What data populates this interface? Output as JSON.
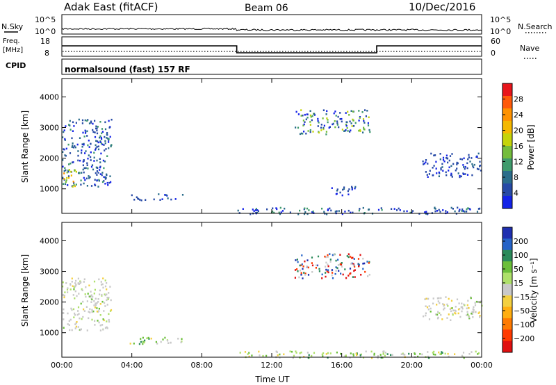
{
  "header": {
    "station": "Adak East (fitACF)",
    "beam": "Beam 06",
    "date": "10/Dec/2016"
  },
  "sky_panel": {
    "left_label": "N.Sky",
    "right_label": "N.Search",
    "left_ticks": [
      "10^5",
      "10^0"
    ],
    "right_ticks": [
      "10^5",
      "10^0"
    ]
  },
  "freq_panel": {
    "left_label_1": "Freq.",
    "left_label_2": "[MHz]",
    "right_label": "Nave",
    "left_ticks": [
      "18",
      "8"
    ],
    "right_ticks": [
      "60",
      "0"
    ]
  },
  "cpid_panel": {
    "label": "CPID",
    "program": "normalsound (fast) 157 RF"
  },
  "chart_data": [
    {
      "type": "heatmap",
      "panel": "power",
      "ylabel": "Slant Range [km]",
      "yticks": [
        1000,
        2000,
        3000,
        4000
      ],
      "ylim": [
        200,
        4600
      ],
      "xlim": [
        0,
        24
      ],
      "xticks": [
        "00:00",
        "04:00",
        "08:00",
        "12:00",
        "16:00",
        "20:00",
        "00:00"
      ],
      "colorbar": {
        "label": "Power [dB]",
        "ticks": [
          "28",
          "24",
          "20",
          "16",
          "12",
          "8",
          "4"
        ],
        "colors": [
          "#e8151b",
          "#ff5a0a",
          "#ff9200",
          "#f5b800",
          "#c5d40a",
          "#74bd3c",
          "#3f9b6c",
          "#2b6d8b",
          "#274aa6",
          "#1423e8"
        ]
      },
      "regions": [
        {
          "t0": 0.0,
          "t1": 2.8,
          "r0": 1100,
          "r1": 3300,
          "level": "blue-green"
        },
        {
          "t0": 0.0,
          "t1": 0.8,
          "r0": 1100,
          "r1": 1700,
          "level": "yellow-green"
        },
        {
          "t0": 3.8,
          "t1": 7.0,
          "r0": 650,
          "r1": 870,
          "level": "blue"
        },
        {
          "t0": 10.0,
          "t1": 24.0,
          "r0": 200,
          "r1": 420,
          "level": "blue-green"
        },
        {
          "t0": 13.3,
          "t1": 17.6,
          "r0": 2800,
          "r1": 3600,
          "level": "green-blue"
        },
        {
          "t0": 15.4,
          "t1": 16.8,
          "r0": 800,
          "r1": 1100,
          "level": "blue"
        },
        {
          "t0": 20.6,
          "t1": 24.0,
          "r0": 1400,
          "r1": 2200,
          "level": "blue"
        }
      ]
    },
    {
      "type": "heatmap",
      "panel": "velocity",
      "ylabel": "Slant Range [km]",
      "yticks": [
        1000,
        2000,
        3000,
        4000
      ],
      "ylim": [
        200,
        4600
      ],
      "xlim": [
        0,
        24
      ],
      "xticks": [
        "00:00",
        "04:00",
        "08:00",
        "12:00",
        "16:00",
        "20:00",
        "00:00"
      ],
      "xlabel": "Time UT",
      "colorbar": {
        "label": "Velocity [m s⁻¹]",
        "ticks": [
          "200",
          "100",
          "50",
          "15",
          "−15",
          "−50",
          "−100",
          "−200"
        ],
        "colors": [
          "#1f2fb0",
          "#2563c8",
          "#2a8a5a",
          "#6bbf3a",
          "#aee06a",
          "#c9c9c9",
          "#f3d040",
          "#ffae10",
          "#ff7a00",
          "#ff3a00",
          "#e01010"
        ]
      },
      "regions": [
        {
          "t0": 0.0,
          "t1": 2.8,
          "r0": 1100,
          "r1": 2800,
          "level": "grey-ground"
        },
        {
          "t0": 3.8,
          "t1": 7.0,
          "r0": 650,
          "r1": 870,
          "level": "yellow-green"
        },
        {
          "t0": 10.0,
          "t1": 24.0,
          "r0": 200,
          "r1": 420,
          "level": "yellow-green"
        },
        {
          "t0": 13.3,
          "t1": 17.6,
          "r0": 2800,
          "r1": 3600,
          "level": "red-blue"
        },
        {
          "t0": 20.6,
          "t1": 24.0,
          "r0": 1400,
          "r1": 2200,
          "level": "grey-ground"
        }
      ]
    }
  ]
}
